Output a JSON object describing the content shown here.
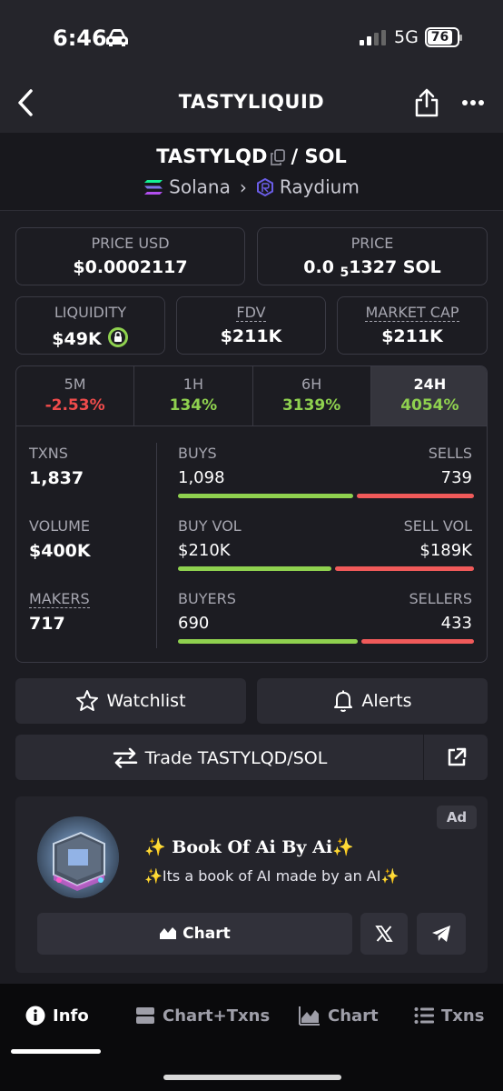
{
  "status": {
    "time": "6:46",
    "network": "5G",
    "battery": "76"
  },
  "header": {
    "title": "TASTYLIQUID"
  },
  "pair": {
    "base": "TASTYLQD",
    "separator": "/ SOL",
    "chain": "Solana",
    "dex": "Raydium"
  },
  "price_usd": {
    "label": "PRICE USD",
    "value": "$0.0002117"
  },
  "price_native": {
    "label": "PRICE",
    "prefix": "0.0",
    "sub": "5",
    "suffix": "1327 SOL"
  },
  "liquidity": {
    "label": "LIQUIDITY",
    "value": "$49K"
  },
  "fdv": {
    "label": "FDV",
    "value": "$211K"
  },
  "market_cap": {
    "label": "MARKET CAP",
    "value": "$211K"
  },
  "tabs": [
    {
      "label": "5M",
      "value": "-2.53%"
    },
    {
      "label": "1H",
      "value": "134%"
    },
    {
      "label": "6H",
      "value": "3139%"
    },
    {
      "label": "24H",
      "value": "4054%"
    }
  ],
  "txns": {
    "label": "TXNS",
    "value": "1,837",
    "left_label": "BUYS",
    "left_value": "1,098",
    "right_label": "SELLS",
    "right_value": "739",
    "left_fraction": 0.598
  },
  "volume": {
    "label": "VOLUME",
    "value": "$400K",
    "left_label": "BUY VOL",
    "left_value": "$210K",
    "right_label": "SELL VOL",
    "right_value": "$189K",
    "left_fraction": 0.526
  },
  "makers": {
    "label": "MAKERS",
    "value": "717",
    "left_label": "BUYERS",
    "left_value": "690",
    "right_label": "SELLERS",
    "right_value": "433",
    "left_fraction": 0.614
  },
  "buttons": {
    "watchlist": "Watchlist",
    "alerts": "Alerts",
    "trade": "Trade TASTYLQD/SOL"
  },
  "ad": {
    "badge": "Ad",
    "title": "✨ Book Of Ai By Ai✨",
    "description": "✨Its a book of AI made by an AI✨",
    "chart_button": "Chart"
  },
  "nav": {
    "info": "Info",
    "chart_txns": "Chart+Txns",
    "chart": "Chart",
    "txns": "Txns"
  },
  "colors": {
    "positive": "#8fd14f",
    "negative": "#f04b4b",
    "background": "#1c1c22"
  }
}
